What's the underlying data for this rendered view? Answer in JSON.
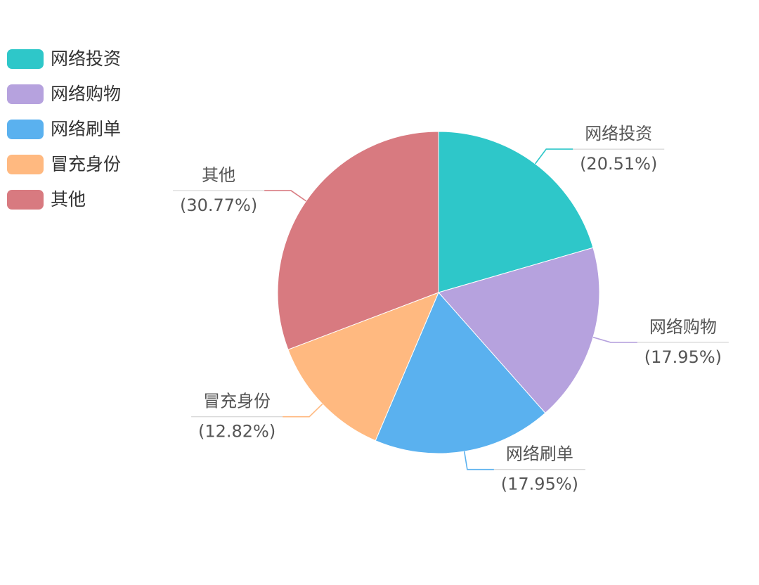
{
  "chart_data": {
    "type": "pie",
    "title": "",
    "legend_position": "top-left",
    "slices": [
      {
        "label": "网络投资",
        "value": 20.51,
        "pct_label": "(20.51%)",
        "color": "#2ec7c9"
      },
      {
        "label": "网络购物",
        "value": 17.95,
        "pct_label": "(17.95%)",
        "color": "#b6a2de"
      },
      {
        "label": "网络刷单",
        "value": 17.95,
        "pct_label": "(17.95%)",
        "color": "#5ab1ef"
      },
      {
        "label": "冒充身份",
        "value": 12.82,
        "pct_label": "(12.82%)",
        "color": "#ffb980"
      },
      {
        "label": "其他",
        "value": 30.77,
        "pct_label": "(30.77%)",
        "color": "#d87a80"
      }
    ]
  }
}
